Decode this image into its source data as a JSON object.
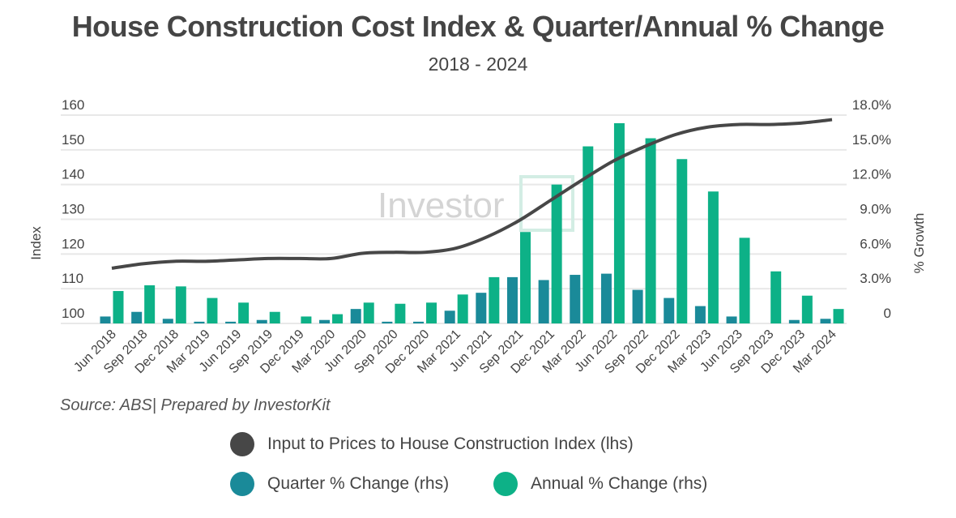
{
  "chart_data": {
    "type": "bar",
    "title": "House Construction Cost Index & Quarter/Annual % Change",
    "subtitle": "2018 - 2024",
    "source": "Source: ABS| Prepared by InvestorKit",
    "watermark": "InvestorKit",
    "ylabel_left": "Index",
    "ylabel_right": "% Growth",
    "ylim_left": [
      100,
      160
    ],
    "ylim_right": [
      0,
      18
    ],
    "yticks_left": [
      "100",
      "110",
      "120",
      "130",
      "140",
      "150",
      "160"
    ],
    "yticks_right": [
      "0",
      "3.0%",
      "6.0%",
      "9.0%",
      "12.0%",
      "15.0%",
      "18.0%"
    ],
    "grid": true,
    "legend_placement": "bottom",
    "categories": [
      "Jun 2018",
      "Sep 2018",
      "Dec 2018",
      "Mar 2019",
      "Jun 2019",
      "Sep 2019",
      "Dec 2019",
      "Mar 2020",
      "Jun 2020",
      "Sep 2020",
      "Dec 2020",
      "Mar 2021",
      "Jun 2021",
      "Sep 2021",
      "Dec 2021",
      "Mar 2022",
      "Jun 2022",
      "Sep 2022",
      "Dec 2022",
      "Mar 2023",
      "Jun 2023",
      "Sep 2023",
      "Dec 2023",
      "Mar 2024"
    ],
    "series": [
      {
        "name": "Input to Prices to House Construction Index (lhs)",
        "type": "line",
        "axis": "left",
        "color": "#474747",
        "values": [
          115.9,
          117.2,
          117.9,
          117.9,
          118.3,
          118.7,
          118.7,
          118.7,
          120.2,
          120.5,
          120.5,
          121.7,
          125.0,
          129.6,
          135.4,
          141.2,
          146.7,
          150.9,
          154.4,
          156.5,
          157.3,
          157.3,
          157.7,
          158.7
        ]
      },
      {
        "name": "Quarter % Change (rhs)",
        "type": "bar",
        "axis": "right",
        "color": "#1a8a99",
        "values": [
          0.6,
          1.0,
          0.4,
          0.15,
          0.15,
          0.3,
          0.0,
          0.3,
          1.25,
          0.15,
          0.15,
          1.1,
          2.65,
          4.0,
          3.75,
          4.2,
          4.3,
          2.9,
          2.2,
          1.5,
          0.6,
          0.0,
          0.3,
          0.4
        ]
      },
      {
        "name": "Annual % Change (rhs)",
        "type": "bar",
        "axis": "right",
        "color": "#0db187",
        "values": [
          2.8,
          3.3,
          3.2,
          2.2,
          1.8,
          1.0,
          0.6,
          0.8,
          1.8,
          1.7,
          1.8,
          2.5,
          4.0,
          7.9,
          12.0,
          15.3,
          17.3,
          16.0,
          14.2,
          11.4,
          7.4,
          4.5,
          2.4,
          1.25
        ]
      }
    ]
  }
}
